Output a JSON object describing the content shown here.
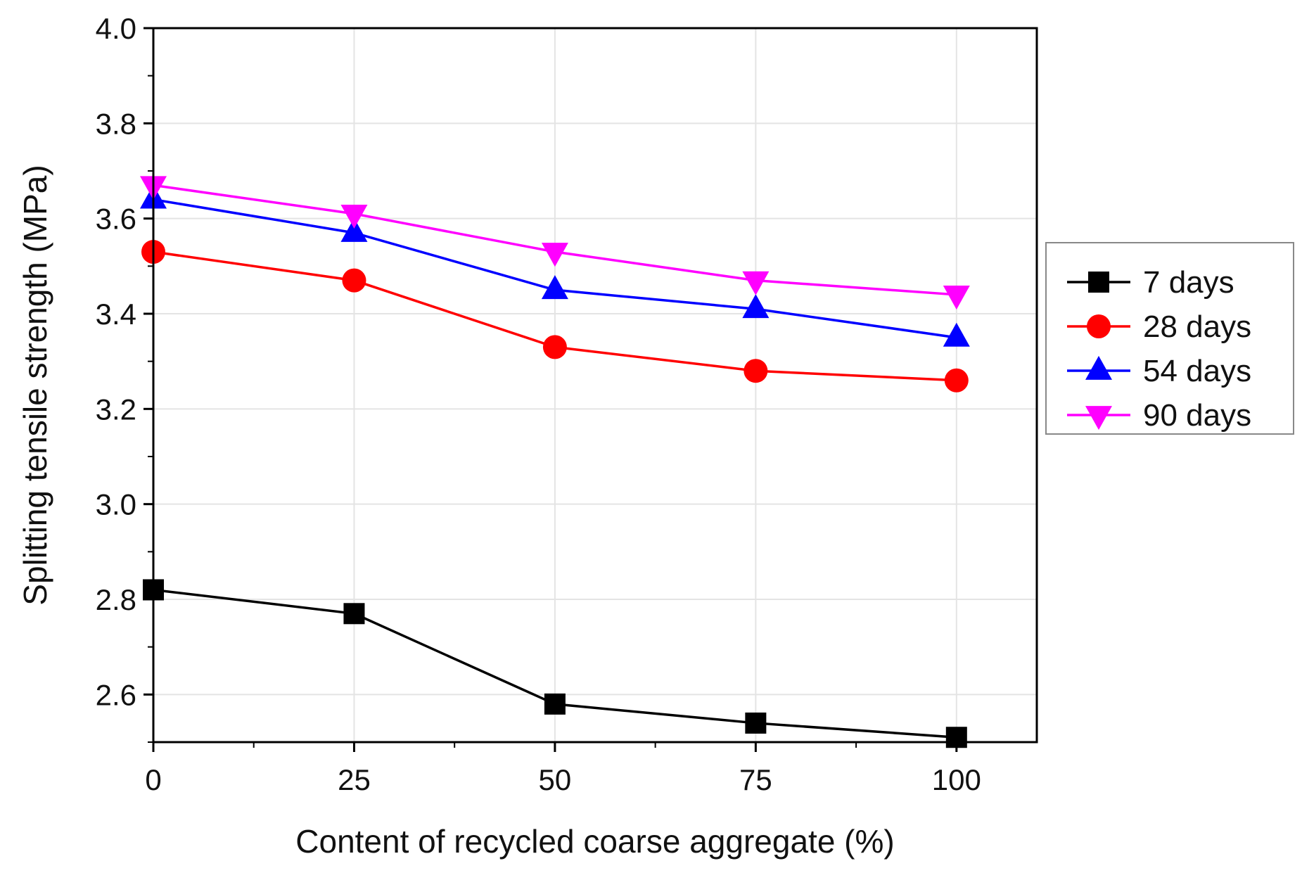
{
  "chart_data": {
    "type": "line",
    "title": "",
    "xlabel": "Content of recycled coarse aggregate (%)",
    "ylabel": "Splitting tensile strength (MPa)",
    "xlim": [
      0,
      110
    ],
    "ylim": [
      2.5,
      4.0
    ],
    "x": [
      0,
      25,
      50,
      75,
      100
    ],
    "x_ticks": [
      0,
      25,
      50,
      75,
      100
    ],
    "x_tick_labels": [
      "0",
      "25",
      "50",
      "75",
      "100"
    ],
    "y_ticks": [
      2.6,
      2.8,
      3.0,
      3.2,
      3.4,
      3.6,
      3.8,
      4.0
    ],
    "y_tick_labels": [
      "2.6",
      "2.8",
      "3.0",
      "3.2",
      "3.4",
      "3.6",
      "3.8",
      "4.0"
    ],
    "grid": true,
    "legend_position": "right",
    "series": [
      {
        "name": "7 days",
        "color": "#000000",
        "marker": "square",
        "values": [
          2.82,
          2.77,
          2.58,
          2.54,
          2.51
        ]
      },
      {
        "name": "28 days",
        "color": "#ff0000",
        "marker": "circle",
        "values": [
          3.53,
          3.47,
          3.33,
          3.28,
          3.26
        ]
      },
      {
        "name": "54 days",
        "color": "#0000ff",
        "marker": "triangle-up",
        "values": [
          3.64,
          3.57,
          3.45,
          3.41,
          3.35
        ]
      },
      {
        "name": "90 days",
        "color": "#ff00ff",
        "marker": "triangle-down",
        "values": [
          3.67,
          3.61,
          3.53,
          3.47,
          3.44
        ]
      }
    ]
  }
}
